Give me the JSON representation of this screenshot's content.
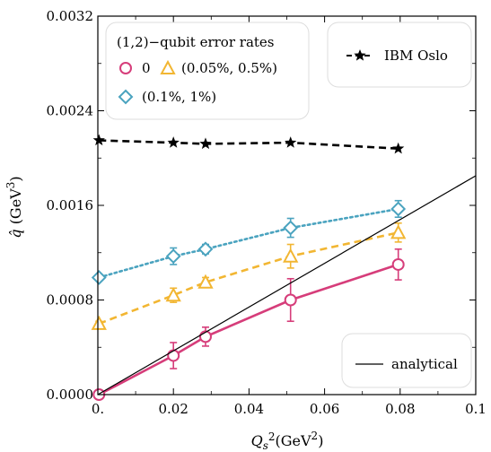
{
  "chart_data": {
    "type": "line",
    "xlabel": "Q_s^2(GeV^2)",
    "ylabel": "q̂ (GeV^3)",
    "xlim": [
      0,
      0.1
    ],
    "ylim": [
      0,
      0.0032
    ],
    "x_ticks": [
      0,
      0.02,
      0.04,
      0.06,
      0.08,
      0.1
    ],
    "x_tick_labels": [
      "0.",
      "0.02",
      "0.04",
      "0.06",
      "0.08",
      "0.1"
    ],
    "y_ticks": [
      0,
      0.0008,
      0.0016,
      0.0024,
      0.0032
    ],
    "y_tick_labels": [
      "0.0000",
      "0.0008",
      "0.0016",
      "0.0024",
      "0.0032"
    ],
    "legend_main": {
      "title": "(1,2)−qubit error rates",
      "placement": "top-left",
      "entries": [
        "0",
        "(0.05%, 0.5%)",
        "(0.1%, 1%)"
      ]
    },
    "legend_ibm": {
      "label": "IBM Oslo",
      "placement": "top-right"
    },
    "legend_analytical": {
      "label": "analytical",
      "placement": "bottom-right"
    },
    "series": [
      {
        "name": "IBM Oslo",
        "color": "#000000",
        "marker": "star",
        "style": "dashed",
        "points": [
          {
            "x": 0.0003,
            "y": 0.00215
          },
          {
            "x": 0.02,
            "y": 0.00213
          },
          {
            "x": 0.0285,
            "y": 0.00212
          },
          {
            "x": 0.051,
            "y": 0.00213
          },
          {
            "x": 0.0795,
            "y": 0.00208
          }
        ]
      },
      {
        "name": "(0.1%, 1%)",
        "color": "#4aa3bf",
        "marker": "diamond",
        "style": "dotted",
        "points": [
          {
            "x": 0.0003,
            "y": 0.00099,
            "err": 2e-05
          },
          {
            "x": 0.02,
            "y": 0.00117,
            "err": 7e-05
          },
          {
            "x": 0.0285,
            "y": 0.00123,
            "err": 4e-05
          },
          {
            "x": 0.051,
            "y": 0.00141,
            "err": 8e-05
          },
          {
            "x": 0.0795,
            "y": 0.00157,
            "err": 7e-05
          }
        ]
      },
      {
        "name": "(0.05%, 0.5%)",
        "color": "#f2b632",
        "marker": "triangle",
        "style": "dashed",
        "points": [
          {
            "x": 0.0003,
            "y": 0.0006,
            "err": 2e-05
          },
          {
            "x": 0.02,
            "y": 0.00084,
            "err": 6e-05
          },
          {
            "x": 0.0285,
            "y": 0.00095,
            "err": 4e-05
          },
          {
            "x": 0.051,
            "y": 0.00117,
            "err": 0.0001
          },
          {
            "x": 0.0795,
            "y": 0.00137,
            "err": 8e-05
          }
        ]
      },
      {
        "name": "0",
        "color": "#d63d7a",
        "marker": "circle",
        "style": "solid",
        "points": [
          {
            "x": 0.0003,
            "y": 0.0,
            "err": 1e-05
          },
          {
            "x": 0.02,
            "y": 0.00033,
            "err": 0.00011
          },
          {
            "x": 0.0285,
            "y": 0.00049,
            "err": 8e-05
          },
          {
            "x": 0.051,
            "y": 0.0008,
            "err": 0.00018
          },
          {
            "x": 0.0795,
            "y": 0.0011,
            "err": 0.00013
          }
        ]
      },
      {
        "name": "analytical",
        "color": "#000000",
        "marker": "none",
        "style": "solid-thin",
        "points": [
          {
            "x": 0.0,
            "y": 0.0
          },
          {
            "x": 0.1,
            "y": 0.00185
          }
        ]
      }
    ]
  }
}
